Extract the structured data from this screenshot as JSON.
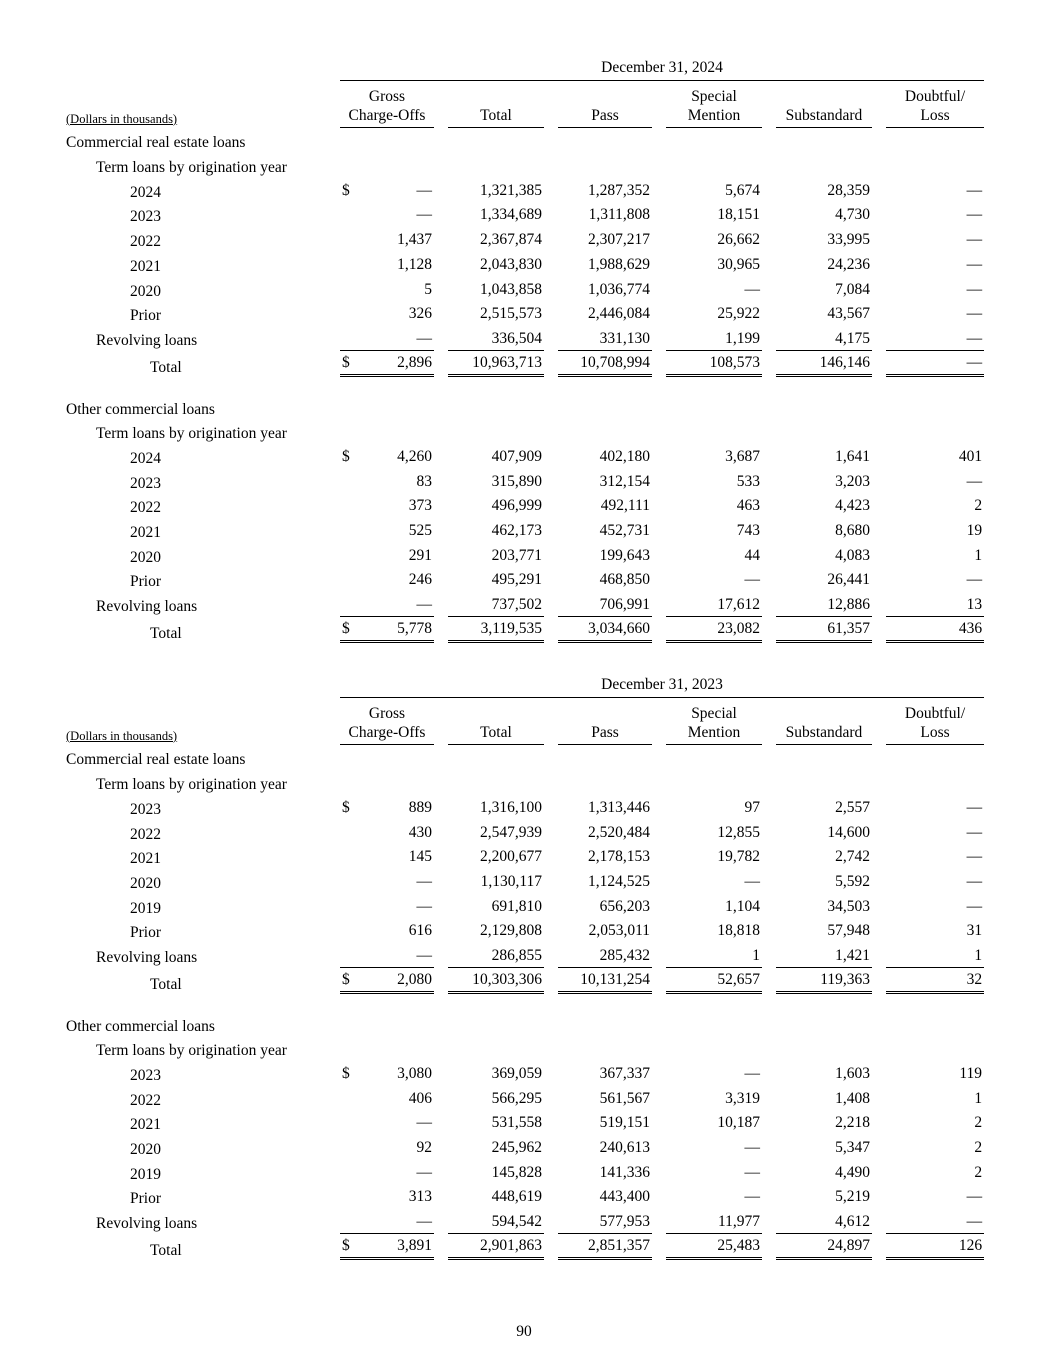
{
  "page": {
    "number": "90"
  },
  "note": "(Dollars in thousands)",
  "currency": "$",
  "tables": [
    {
      "date_header": "December 31, 2024",
      "columns": [
        {
          "lines": [
            "Gross",
            "Charge-Offs"
          ]
        },
        {
          "lines": [
            "Total"
          ]
        },
        {
          "lines": [
            "Pass"
          ]
        },
        {
          "lines": [
            "Special",
            "Mention"
          ]
        },
        {
          "lines": [
            "Substandard"
          ]
        },
        {
          "lines": [
            "Doubtful/",
            "Loss"
          ]
        }
      ],
      "sections": [
        {
          "title": "Commercial real estate loans",
          "subtitle": "Term loans by origination year",
          "rows": [
            {
              "label": "2024",
              "indent": 2,
              "dollar": true,
              "values": [
                "—",
                "1,321,385",
                "1,287,352",
                "5,674",
                "28,359",
                "—"
              ]
            },
            {
              "label": "2023",
              "indent": 2,
              "values": [
                "—",
                "1,334,689",
                "1,311,808",
                "18,151",
                "4,730",
                "—"
              ]
            },
            {
              "label": "2022",
              "indent": 2,
              "values": [
                "1,437",
                "2,367,874",
                "2,307,217",
                "26,662",
                "33,995",
                "—"
              ]
            },
            {
              "label": "2021",
              "indent": 2,
              "values": [
                "1,128",
                "2,043,830",
                "1,988,629",
                "30,965",
                "24,236",
                "—"
              ]
            },
            {
              "label": "2020",
              "indent": 2,
              "values": [
                "5",
                "1,043,858",
                "1,036,774",
                "—",
                "7,084",
                "—"
              ]
            },
            {
              "label": "Prior",
              "indent": 2,
              "values": [
                "326",
                "2,515,573",
                "2,446,084",
                "25,922",
                "43,567",
                "—"
              ]
            },
            {
              "label": "Revolving loans",
              "indent": 1,
              "values": [
                "—",
                "336,504",
                "331,130",
                "1,199",
                "4,175",
                "—"
              ]
            }
          ],
          "total": {
            "label": "Total",
            "indent": 3,
            "dollar": true,
            "values": [
              "2,896",
              "10,963,713",
              "10,708,994",
              "108,573",
              "146,146",
              "—"
            ]
          }
        },
        {
          "title": "Other commercial loans",
          "subtitle": "Term loans by origination year",
          "rows": [
            {
              "label": "2024",
              "indent": 2,
              "dollar": true,
              "values": [
                "4,260",
                "407,909",
                "402,180",
                "3,687",
                "1,641",
                "401"
              ]
            },
            {
              "label": "2023",
              "indent": 2,
              "values": [
                "83",
                "315,890",
                "312,154",
                "533",
                "3,203",
                "—"
              ]
            },
            {
              "label": "2022",
              "indent": 2,
              "values": [
                "373",
                "496,999",
                "492,111",
                "463",
                "4,423",
                "2"
              ]
            },
            {
              "label": "2021",
              "indent": 2,
              "values": [
                "525",
                "462,173",
                "452,731",
                "743",
                "8,680",
                "19"
              ]
            },
            {
              "label": "2020",
              "indent": 2,
              "values": [
                "291",
                "203,771",
                "199,643",
                "44",
                "4,083",
                "1"
              ]
            },
            {
              "label": "Prior",
              "indent": 2,
              "values": [
                "246",
                "495,291",
                "468,850",
                "—",
                "26,441",
                "—"
              ]
            },
            {
              "label": "Revolving loans",
              "indent": 1,
              "values": [
                "—",
                "737,502",
                "706,991",
                "17,612",
                "12,886",
                "13"
              ]
            }
          ],
          "total": {
            "label": "Total",
            "indent": 3,
            "dollar": true,
            "values": [
              "5,778",
              "3,119,535",
              "3,034,660",
              "23,082",
              "61,357",
              "436"
            ]
          }
        }
      ]
    },
    {
      "date_header": "December 31, 2023",
      "columns": [
        {
          "lines": [
            "Gross",
            "Charge-Offs"
          ]
        },
        {
          "lines": [
            "Total"
          ]
        },
        {
          "lines": [
            "Pass"
          ]
        },
        {
          "lines": [
            "Special",
            "Mention"
          ]
        },
        {
          "lines": [
            "Substandard"
          ]
        },
        {
          "lines": [
            "Doubtful/",
            "Loss"
          ]
        }
      ],
      "sections": [
        {
          "title": "Commercial real estate loans",
          "subtitle": "Term loans by origination year",
          "rows": [
            {
              "label": "2023",
              "indent": 2,
              "dollar": true,
              "values": [
                "889",
                "1,316,100",
                "1,313,446",
                "97",
                "2,557",
                "—"
              ]
            },
            {
              "label": "2022",
              "indent": 2,
              "values": [
                "430",
                "2,547,939",
                "2,520,484",
                "12,855",
                "14,600",
                "—"
              ]
            },
            {
              "label": "2021",
              "indent": 2,
              "values": [
                "145",
                "2,200,677",
                "2,178,153",
                "19,782",
                "2,742",
                "—"
              ]
            },
            {
              "label": "2020",
              "indent": 2,
              "values": [
                "—",
                "1,130,117",
                "1,124,525",
                "—",
                "5,592",
                "—"
              ]
            },
            {
              "label": "2019",
              "indent": 2,
              "values": [
                "—",
                "691,810",
                "656,203",
                "1,104",
                "34,503",
                "—"
              ]
            },
            {
              "label": "Prior",
              "indent": 2,
              "values": [
                "616",
                "2,129,808",
                "2,053,011",
                "18,818",
                "57,948",
                "31"
              ]
            },
            {
              "label": "Revolving loans",
              "indent": 1,
              "values": [
                "—",
                "286,855",
                "285,432",
                "1",
                "1,421",
                "1"
              ]
            }
          ],
          "total": {
            "label": "Total",
            "indent": 3,
            "dollar": true,
            "values": [
              "2,080",
              "10,303,306",
              "10,131,254",
              "52,657",
              "119,363",
              "32"
            ]
          }
        },
        {
          "title": "Other commercial loans",
          "subtitle": "Term loans by origination year",
          "rows": [
            {
              "label": "2023",
              "indent": 2,
              "dollar": true,
              "values": [
                "3,080",
                "369,059",
                "367,337",
                "—",
                "1,603",
                "119"
              ]
            },
            {
              "label": "2022",
              "indent": 2,
              "values": [
                "406",
                "566,295",
                "561,567",
                "3,319",
                "1,408",
                "1"
              ]
            },
            {
              "label": "2021",
              "indent": 2,
              "values": [
                "—",
                "531,558",
                "519,151",
                "10,187",
                "2,218",
                "2"
              ]
            },
            {
              "label": "2020",
              "indent": 2,
              "values": [
                "92",
                "245,962",
                "240,613",
                "—",
                "5,347",
                "2"
              ]
            },
            {
              "label": "2019",
              "indent": 2,
              "values": [
                "—",
                "145,828",
                "141,336",
                "—",
                "4,490",
                "2"
              ]
            },
            {
              "label": "Prior",
              "indent": 2,
              "values": [
                "313",
                "448,619",
                "443,400",
                "—",
                "5,219",
                "—"
              ]
            },
            {
              "label": "Revolving loans",
              "indent": 1,
              "values": [
                "—",
                "594,542",
                "577,953",
                "11,977",
                "4,612",
                "—"
              ]
            }
          ],
          "total": {
            "label": "Total",
            "indent": 3,
            "dollar": true,
            "values": [
              "3,891",
              "2,901,863",
              "2,851,357",
              "25,483",
              "24,897",
              "126"
            ]
          }
        }
      ]
    }
  ]
}
